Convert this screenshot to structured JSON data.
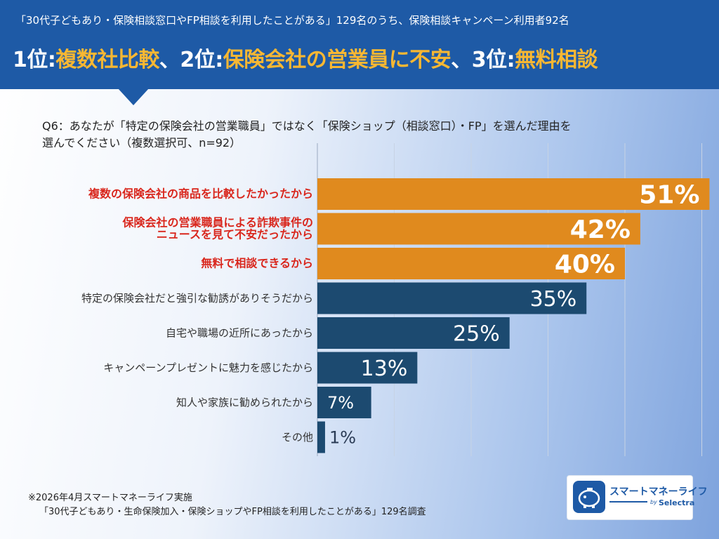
{
  "header": {
    "subtitle": "「30代子どもあり・保険相談窓口やFP相談を利用したことがある」129名のうち、保険相談キャンペーン利用者92名",
    "title_parts": {
      "r1": "1位:",
      "r1_text": "複数社比較",
      "sep1": "、",
      "r2": "2位:",
      "r2_text": "保険会社の営業員に不安",
      "sep2": "、",
      "r3": "3位:",
      "r3_text": "無料相談"
    }
  },
  "question": {
    "line1": "Q6：あなたが「特定の保険会社の営業職員」ではなく「保険ショップ（相談窓口）・FP」を選んだ理由を",
    "line2": "選んでください（複数選択可、n=92）"
  },
  "chart_data": {
    "type": "bar",
    "orientation": "horizontal",
    "unit": "%",
    "xlim": [
      0,
      55
    ],
    "grid": true,
    "categories": [
      [
        "複数の保険会社の商品を比較したかったから"
      ],
      [
        "保険会社の営業職員による詐欺事件の",
        "ニュースを見て不安だったから"
      ],
      [
        "無料で相談できるから"
      ],
      [
        "特定の保険会社だと強引な勧誘がありそうだから"
      ],
      [
        "自宅や職場の近所にあったから"
      ],
      [
        "キャンペーンプレゼントに魅力を感じたから"
      ],
      [
        "知人や家族に勧められたから"
      ],
      [
        "その他"
      ]
    ],
    "values": [
      51,
      42,
      40,
      35,
      25,
      13,
      7,
      1
    ],
    "value_labels": [
      "51%",
      "42%",
      "40%",
      "35%",
      "25%",
      "13%",
      "7%",
      "1%"
    ],
    "highlight_top": 3,
    "colors": {
      "highlight": "#e08a1e",
      "normal": "#1c4a70",
      "highlight_label": "#d9261c",
      "normal_label": "#333333"
    }
  },
  "footnote": {
    "line1": "※2026年4月スマートマネーライフ実施",
    "line2": "「30代子どもあり・生命保険加入・保険ショップやFP相談を利用したことがある」129名調査"
  },
  "logo": {
    "name": "スマートマネーライフ",
    "by": "by",
    "brand": "Selectra",
    "icon": "piggy-bank-icon"
  }
}
